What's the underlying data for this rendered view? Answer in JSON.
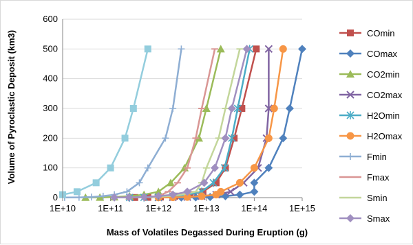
{
  "chart_data": {
    "type": "line",
    "title": "",
    "xlabel": "Mass of Volatiles Degassed During Eruption (g)",
    "ylabel": "Volume of Pyroclastic Deposit (km3)",
    "x_scale": "log",
    "xlim": [
      "1E+10",
      "1E+15"
    ],
    "ylim": [
      0,
      600
    ],
    "x_ticks": [
      "1E+10",
      "1E+11",
      "1E+12",
      "1E+13",
      "1E+14",
      "1E+15"
    ],
    "y_ticks": [
      "0",
      "100",
      "200",
      "300",
      "400",
      "500",
      "600"
    ],
    "grid": "horizontal",
    "legend": "right",
    "series": [
      {
        "name": "COmin",
        "color": "#c0504d",
        "marker": "square",
        "points": [
          [
            320000000000.0,
            0.5
          ],
          [
            600000000000.0,
            1
          ],
          [
            1100000000000.0,
            2
          ],
          [
            2200000000000.0,
            5
          ],
          [
            4500000000000.0,
            10
          ],
          [
            8500000000000.0,
            20
          ],
          [
            16000000000000.0,
            50
          ],
          [
            25000000000000.0,
            100
          ],
          [
            38000000000000.0,
            200
          ],
          [
            55000000000000.0,
            300
          ],
          [
            110000000000000.0,
            500
          ]
        ]
      },
      {
        "name": "COmax",
        "color": "#4f81bd",
        "marker": "diamond",
        "points": [
          [
            3000000000000.0,
            0.5
          ],
          [
            6000000000000.0,
            1
          ],
          [
            12000000000000.0,
            2
          ],
          [
            25000000000000.0,
            5
          ],
          [
            50000000000000.0,
            10
          ],
          [
            100000000000000.0,
            20
          ],
          [
            100000000000000.0,
            50
          ],
          [
            200000000000000.0,
            100
          ],
          [
            400000000000000.0,
            200
          ],
          [
            550000000000000.0,
            300
          ],
          [
            1000000000000000.0,
            500
          ]
        ]
      },
      {
        "name": "CO2min",
        "color": "#9bbb59",
        "marker": "triangle",
        "points": [
          [
            30000000000.0,
            0.5
          ],
          [
            60000000000.0,
            1
          ],
          [
            120000000000.0,
            2
          ],
          [
            250000000000.0,
            5
          ],
          [
            500000000000.0,
            10
          ],
          [
            1000000000000.0,
            20
          ],
          [
            1800000000000.0,
            50
          ],
          [
            3500000000000.0,
            100
          ],
          [
            7000000000000.0,
            200
          ],
          [
            10000000000000.0,
            300
          ],
          [
            20000000000000.0,
            500
          ]
        ]
      },
      {
        "name": "CO2max",
        "color": "#8064a2",
        "marker": "x",
        "points": [
          [
            1000000000000.0,
            0.5
          ],
          [
            2000000000000.0,
            1
          ],
          [
            4000000000000.0,
            2
          ],
          [
            8000000000000.0,
            5
          ],
          [
            16000000000000.0,
            10
          ],
          [
            32000000000000.0,
            20
          ],
          [
            60000000000000.0,
            50
          ],
          [
            120000000000000.0,
            100
          ],
          [
            180000000000000.0,
            200
          ],
          [
            200000000000000.0,
            300
          ],
          [
            200000000000000.0,
            500
          ]
        ]
      },
      {
        "name": "H2Omin",
        "color": "#4bacc6",
        "marker": "asterisk",
        "points": [
          [
            250000000000.0,
            0.5
          ],
          [
            500000000000.0,
            1
          ],
          [
            1000000000000.0,
            2
          ],
          [
            2000000000000.0,
            5
          ],
          [
            4000000000000.0,
            10
          ],
          [
            8000000000000.0,
            20
          ],
          [
            14000000000000.0,
            50
          ],
          [
            24000000000000.0,
            100
          ],
          [
            34000000000000.0,
            200
          ],
          [
            45000000000000.0,
            300
          ],
          [
            80000000000000.0,
            500
          ]
        ]
      },
      {
        "name": "H2Omax",
        "color": "#f79646",
        "marker": "circle",
        "points": [
          [
            1000000000000.0,
            0.5
          ],
          [
            2000000000000.0,
            1
          ],
          [
            4000000000000.0,
            2
          ],
          [
            8000000000000.0,
            5
          ],
          [
            16000000000000.0,
            10
          ],
          [
            20000000000000.0,
            20
          ],
          [
            50000000000000.0,
            50
          ],
          [
            100000000000000.0,
            100
          ],
          [
            200000000000000.0,
            200
          ],
          [
            260000000000000.0,
            300
          ],
          [
            400000000000000.0,
            500
          ]
        ]
      },
      {
        "name": "Fmin",
        "color": "#8eaed3",
        "marker": "plus",
        "points": [
          [
            11000000000.0,
            0.5
          ],
          [
            22000000000.0,
            1
          ],
          [
            40000000000.0,
            2
          ],
          [
            70000000000.0,
            5
          ],
          [
            120000000000.0,
            10
          ],
          [
            220000000000.0,
            20
          ],
          [
            400000000000.0,
            50
          ],
          [
            600000000000.0,
            100
          ],
          [
            1400000000000.0,
            200
          ],
          [
            2000000000000.0,
            300
          ],
          [
            3000000000000.0,
            500
          ]
        ]
      },
      {
        "name": "Fmax",
        "color": "#d99694",
        "marker": "dash",
        "points": [
          [
            120000000000.0,
            0.5
          ],
          [
            240000000000.0,
            1
          ],
          [
            500000000000.0,
            2
          ],
          [
            1000000000000.0,
            5
          ],
          [
            1600000000000.0,
            20
          ],
          [
            2500000000000.0,
            50
          ],
          [
            4000000000000.0,
            100
          ],
          [
            6000000000000.0,
            200
          ],
          [
            8000000000000.0,
            300
          ],
          [
            15000000000000.0,
            500
          ]
        ]
      },
      {
        "name": "Smin",
        "color": "#c3d69b",
        "marker": "dash",
        "points": [
          [
            200000000000.0,
            0.5
          ],
          [
            400000000000.0,
            1
          ],
          [
            800000000000.0,
            2
          ],
          [
            1600000000000.0,
            5
          ],
          [
            3000000000000.0,
            10
          ],
          [
            6000000000000.0,
            20
          ],
          [
            8000000000000.0,
            50
          ],
          [
            10000000000000.0,
            100
          ],
          [
            18000000000000.0,
            200
          ],
          [
            25000000000000.0,
            300
          ],
          [
            50000000000000.0,
            500
          ]
        ]
      },
      {
        "name": "Smax",
        "color": "#a08fc0",
        "marker": "diamond",
        "points": [
          [
            120000000000.0,
            0.5
          ],
          [
            240000000000.0,
            1
          ],
          [
            500000000000.0,
            2
          ],
          [
            1000000000000.0,
            5
          ],
          [
            2000000000000.0,
            10
          ],
          [
            4000000000000.0,
            20
          ],
          [
            9000000000000.0,
            50
          ],
          [
            15000000000000.0,
            100
          ],
          [
            25000000000000.0,
            200
          ],
          [
            34000000000000.0,
            300
          ],
          [
            70000000000000.0,
            500
          ]
        ]
      },
      {
        "name": "",
        "color": "#93cddd",
        "marker": "square",
        "points": [
          [
            10000000000.0,
            10
          ],
          [
            20000000000.0,
            20
          ],
          [
            50000000000.0,
            50
          ],
          [
            100000000000.0,
            100
          ],
          [
            200000000000.0,
            200
          ],
          [
            300000000000.0,
            300
          ],
          [
            600000000000.0,
            500
          ]
        ]
      }
    ]
  }
}
